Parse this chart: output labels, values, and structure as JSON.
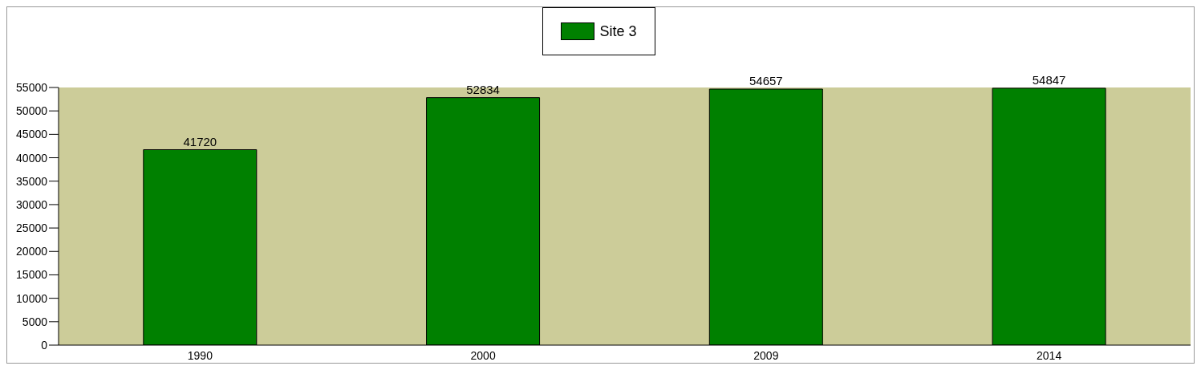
{
  "chart_data": {
    "type": "bar",
    "categories": [
      "1990",
      "2000",
      "2009",
      "2014"
    ],
    "series": [
      {
        "name": "Site 3",
        "color": "#008000",
        "values": [
          41720,
          52834,
          54657,
          54847
        ]
      }
    ],
    "ylim": [
      0,
      55000
    ],
    "yticks": [
      0,
      5000,
      10000,
      15000,
      20000,
      25000,
      30000,
      35000,
      40000,
      45000,
      50000,
      55000
    ],
    "data_labels": true,
    "legend": "top",
    "grid": false
  }
}
